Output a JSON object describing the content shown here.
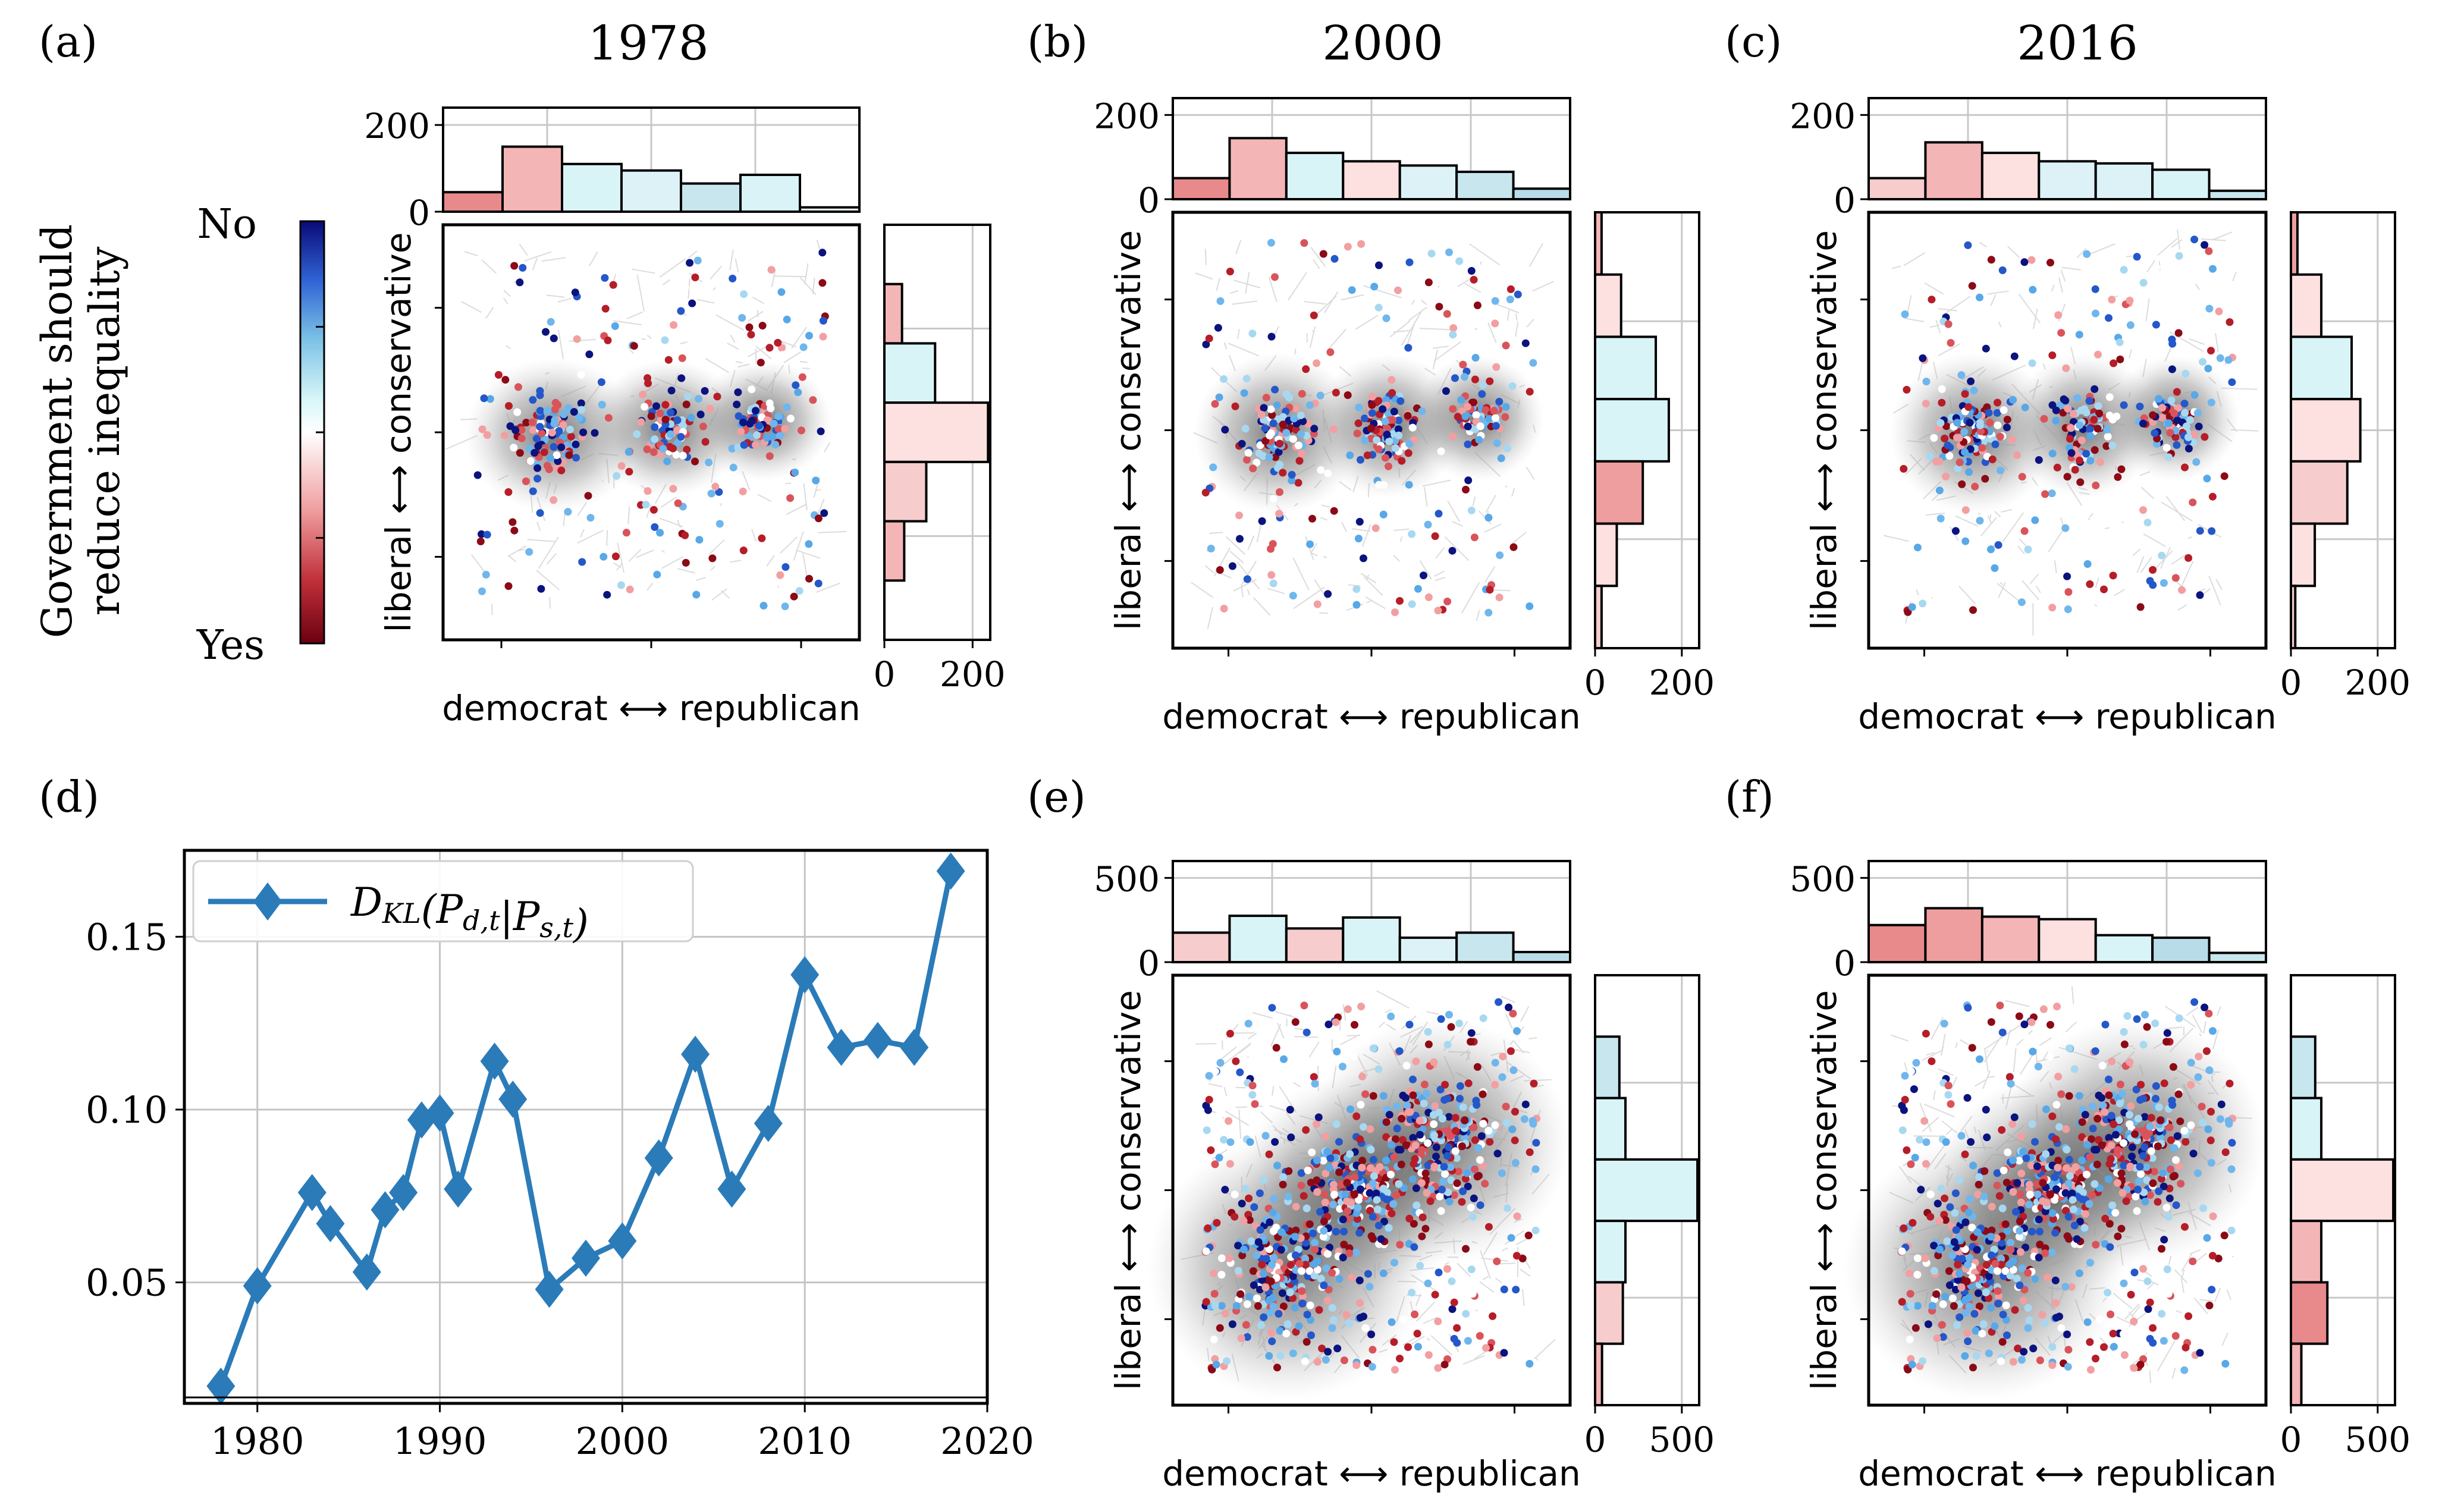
{
  "colorbar": {
    "title_line1": "Government should",
    "title_line2": "reduce inequality",
    "top_label": "No",
    "bottom_label": "Yes"
  },
  "axis_text": {
    "network_xlabel": "democrat ⟷ republican",
    "network_ylabel": "liberal ⟷ conservative"
  },
  "chart_data": [
    {
      "id": "a",
      "panel_label": "(a)",
      "title": "1978",
      "type": "histogram-network",
      "top_hist": {
        "ylim": [
          0,
          240
        ],
        "ticks": [
          0,
          200
        ],
        "tick_labels": [
          "0",
          "200"
        ],
        "values": [
          45,
          150,
          110,
          95,
          65,
          85,
          10
        ],
        "colors": [
          "#e88a8c",
          "#f4b5b7",
          "#d9f4f7",
          "#dcf2f6",
          "#c8e6ee",
          "#d9f3f7",
          "#e9f7f9"
        ]
      },
      "right_hist": {
        "xlim": [
          0,
          240
        ],
        "ticks": [
          0,
          200
        ],
        "tick_labels": [
          "0",
          "200"
        ],
        "values": [
          0,
          40,
          115,
          235,
          95,
          45,
          0
        ],
        "colors": [
          "#f6cccd",
          "#f4b5b7",
          "#d9f4f7",
          "#fde0e0",
          "#f6cccd",
          "#f4b5b7",
          "#f6cccd"
        ]
      }
    },
    {
      "id": "b",
      "panel_label": "(b)",
      "title": "2000",
      "type": "histogram-network",
      "top_hist": {
        "ylim": [
          0,
          240
        ],
        "ticks": [
          0,
          200
        ],
        "tick_labels": [
          "0",
          "200"
        ],
        "values": [
          50,
          145,
          110,
          90,
          80,
          65,
          25
        ],
        "colors": [
          "#e88a8c",
          "#f4b5b7",
          "#d9f4f7",
          "#fde0e0",
          "#dcf2f6",
          "#c8e6ee",
          "#b8dde8"
        ]
      },
      "right_hist": {
        "xlim": [
          0,
          240
        ],
        "ticks": [
          0,
          200
        ],
        "tick_labels": [
          "0",
          "200"
        ],
        "values": [
          15,
          60,
          140,
          170,
          110,
          50,
          15
        ],
        "colors": [
          "#f4b5b7",
          "#fde0e0",
          "#d9f4f7",
          "#d9f4f7",
          "#ef9e9f",
          "#fde0e0",
          "#f6cccd"
        ]
      }
    },
    {
      "id": "c",
      "panel_label": "(c)",
      "title": "2016",
      "type": "histogram-network",
      "top_hist": {
        "ylim": [
          0,
          240
        ],
        "ticks": [
          0,
          200
        ],
        "tick_labels": [
          "0",
          "200"
        ],
        "values": [
          50,
          135,
          110,
          90,
          85,
          70,
          20
        ],
        "colors": [
          "#f6cccd",
          "#f4b5b7",
          "#fde0e0",
          "#dcf2f6",
          "#dcf2f6",
          "#d9f4f7",
          "#c8e6ee"
        ]
      },
      "right_hist": {
        "xlim": [
          0,
          240
        ],
        "ticks": [
          0,
          200
        ],
        "tick_labels": [
          "0",
          "200"
        ],
        "values": [
          15,
          70,
          140,
          160,
          130,
          55,
          10
        ],
        "colors": [
          "#ef9e9f",
          "#fde0e0",
          "#d9f4f7",
          "#fde0e0",
          "#f6cccd",
          "#fde0e0",
          "#f6cccd"
        ]
      }
    },
    {
      "id": "d",
      "panel_label": "(d)",
      "title": "",
      "type": "line",
      "xlim": [
        1976,
        2020
      ],
      "ylim": [
        0.015,
        0.175
      ],
      "xticks": [
        1980,
        1990,
        2000,
        2010,
        2020
      ],
      "xtick_labels": [
        "1980",
        "1990",
        "2000",
        "2010",
        "2020"
      ],
      "yticks": [
        0.05,
        0.1,
        0.15
      ],
      "ytick_labels": [
        "0.05",
        "0.10",
        "0.15"
      ],
      "series": [
        {
          "name": "D_KL(P_d,t | P_s,t)",
          "legend_main": "D",
          "legend_sub": "KL",
          "legend_rest": "(P",
          "legend_sub2": "d,t",
          "legend_mid": "|P",
          "legend_sub3": "s,t",
          "legend_end": ")",
          "color": "#2b7bb9",
          "x": [
            1978,
            1980,
            1983,
            1984,
            1986,
            1987,
            1988,
            1989,
            1990,
            1991,
            1993,
            1994,
            1996,
            1998,
            2000,
            2002,
            2004,
            2006,
            2008,
            2010,
            2012,
            2014,
            2016,
            2018
          ],
          "y": [
            0.02,
            0.049,
            0.076,
            0.067,
            0.053,
            0.071,
            0.076,
            0.097,
            0.099,
            0.077,
            0.114,
            0.103,
            0.048,
            0.057,
            0.062,
            0.086,
            0.116,
            0.077,
            0.096,
            0.139,
            0.118,
            0.12,
            0.118,
            0.169
          ]
        }
      ]
    },
    {
      "id": "e",
      "panel_label": "(e)",
      "title": "",
      "type": "histogram-network",
      "top_hist": {
        "ylim": [
          0,
          600
        ],
        "ticks": [
          0,
          500
        ],
        "tick_labels": [
          "0",
          "500"
        ],
        "values": [
          175,
          275,
          200,
          265,
          145,
          175,
          60
        ],
        "colors": [
          "#f6cccd",
          "#d9f4f7",
          "#f6cccd",
          "#d9f4f7",
          "#dcf2f6",
          "#c8e6ee",
          "#b8dde8"
        ]
      },
      "right_hist": {
        "xlim": [
          0,
          600
        ],
        "ticks": [
          0,
          500
        ],
        "tick_labels": [
          "0",
          "500"
        ],
        "values": [
          0,
          140,
          175,
          590,
          175,
          160,
          40
        ],
        "colors": [
          "#f6cccd",
          "#c8e6ee",
          "#d9f4f7",
          "#d9f4f7",
          "#d9f4f7",
          "#f6cccd",
          "#f4b5b7"
        ]
      }
    },
    {
      "id": "f",
      "panel_label": "(f)",
      "title": "",
      "type": "histogram-network",
      "top_hist": {
        "ylim": [
          0,
          600
        ],
        "ticks": [
          0,
          500
        ],
        "tick_labels": [
          "0",
          "500"
        ],
        "values": [
          220,
          320,
          270,
          255,
          160,
          145,
          55
        ],
        "colors": [
          "#e88a8c",
          "#ef9e9f",
          "#f4b5b7",
          "#fde0e0",
          "#d9f4f7",
          "#b8dde8",
          "#c8e6ee"
        ]
      },
      "right_hist": {
        "xlim": [
          0,
          600
        ],
        "ticks": [
          0,
          500
        ],
        "tick_labels": [
          "0",
          "500"
        ],
        "values": [
          0,
          140,
          175,
          590,
          175,
          210,
          60
        ],
        "colors": [
          "#f6cccd",
          "#c8e6ee",
          "#d9f4f7",
          "#fde0e0",
          "#f4b5b7",
          "#e88a8c",
          "#f4b5b7"
        ]
      }
    }
  ]
}
